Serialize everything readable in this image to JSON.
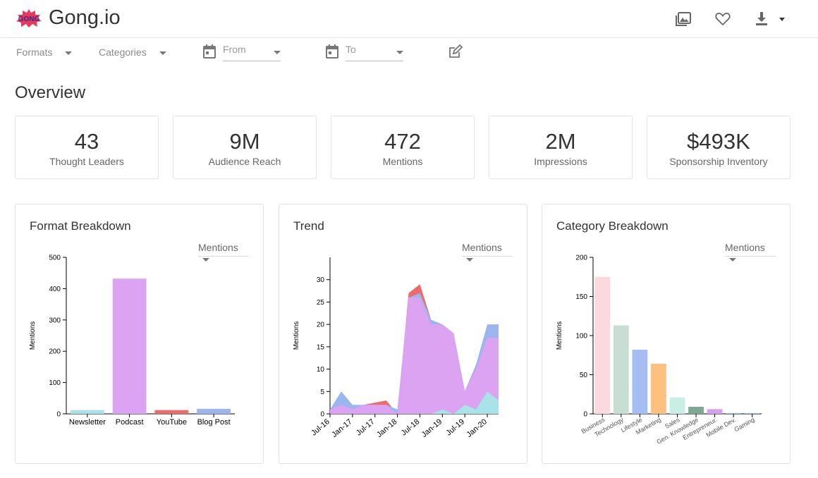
{
  "app": {
    "title": "Gong.io",
    "logo_text": "GONG"
  },
  "topbar": {
    "icons": [
      "photo-library-icon",
      "heart-icon",
      "download-icon"
    ]
  },
  "filters": {
    "formats_label": "Formats",
    "categories_label": "Categories",
    "from_placeholder": "From",
    "to_placeholder": "To"
  },
  "overview": {
    "title": "Overview",
    "kpis": [
      {
        "value": "43",
        "label": "Thought Leaders"
      },
      {
        "value": "9M",
        "label": "Audience Reach"
      },
      {
        "value": "472",
        "label": "Mentions"
      },
      {
        "value": "2M",
        "label": "Impressions"
      },
      {
        "value": "$493K",
        "label": "Sponsorship Inventory"
      }
    ]
  },
  "cards": {
    "format": {
      "title": "Format Breakdown",
      "metric": "Mentions"
    },
    "trend": {
      "title": "Trend",
      "metric": "Mentions"
    },
    "category": {
      "title": "Category Breakdown",
      "metric": "Mentions"
    }
  },
  "chart_data": [
    {
      "type": "bar",
      "categories": [
        "Newsletter",
        "Podcast",
        "YouTube",
        "Blog Post"
      ],
      "values": [
        12,
        432,
        12,
        16
      ],
      "colors": [
        "#a9e3ea",
        "#dda3f3",
        "#ef6b6b",
        "#9bb5ef"
      ],
      "ylabel": "Mentions",
      "ylim": [
        0,
        500
      ],
      "yticks": [
        0,
        100,
        200,
        300,
        400,
        500
      ]
    },
    {
      "type": "area",
      "x": [
        "Jul-16",
        "Oct-16",
        "Jan-17",
        "Apr-17",
        "Jul-17",
        "Oct-17",
        "Jan-18",
        "Apr-18",
        "Jul-18",
        "Oct-18",
        "Jan-19",
        "Apr-19",
        "Jul-19",
        "Oct-19",
        "Jan-20",
        "Apr-20"
      ],
      "xticks": [
        "Jul-16",
        "Jan-17",
        "Jul-17",
        "Jan-18",
        "Jul-18",
        "Jan-19",
        "Jul-19",
        "Jan-20"
      ],
      "series": [
        {
          "color": "#ef6b6b",
          "values": [
            1,
            2,
            1,
            2,
            2.5,
            3,
            0,
            27,
            29,
            21,
            20,
            18,
            5,
            11,
            17,
            17
          ]
        },
        {
          "color": "#9bb5ef",
          "values": [
            1,
            5,
            2,
            2,
            2,
            2,
            1,
            26,
            27,
            21,
            20,
            18,
            5,
            11,
            20,
            20
          ]
        },
        {
          "color": "#dda3f3",
          "values": [
            1,
            2,
            1,
            2,
            2,
            2,
            0,
            26,
            26,
            20,
            20,
            18,
            5,
            10,
            17,
            17
          ]
        },
        {
          "color": "#a9e3ea",
          "values": [
            0,
            0,
            0,
            0,
            0,
            0,
            0,
            0,
            0,
            0,
            1,
            0,
            2,
            1,
            5,
            3
          ]
        }
      ],
      "ylabel": "Mentions",
      "ylim": [
        0,
        35
      ],
      "yticks": [
        0,
        5,
        10,
        15,
        20,
        25,
        30
      ]
    },
    {
      "type": "bar",
      "categories": [
        "Business",
        "Technology",
        "Lifestyle",
        "Marketing",
        "Sales",
        "Gen. Knowledge",
        "Entrepreneur.",
        "Mobile Dev.",
        "Gaming"
      ],
      "values": [
        175,
        113,
        82,
        64,
        21,
        9,
        6,
        1,
        1
      ],
      "colors": [
        "#fcd9df",
        "#c8ddd3",
        "#a5bdf0",
        "#fdc07f",
        "#c9eee3",
        "#7da893",
        "#d7a0ef",
        "#9bb5ef",
        "#9bb5ef"
      ],
      "ylabel": "Mentions",
      "ylim": [
        0,
        200
      ],
      "yticks": [
        0,
        50,
        100,
        150,
        200
      ]
    }
  ]
}
